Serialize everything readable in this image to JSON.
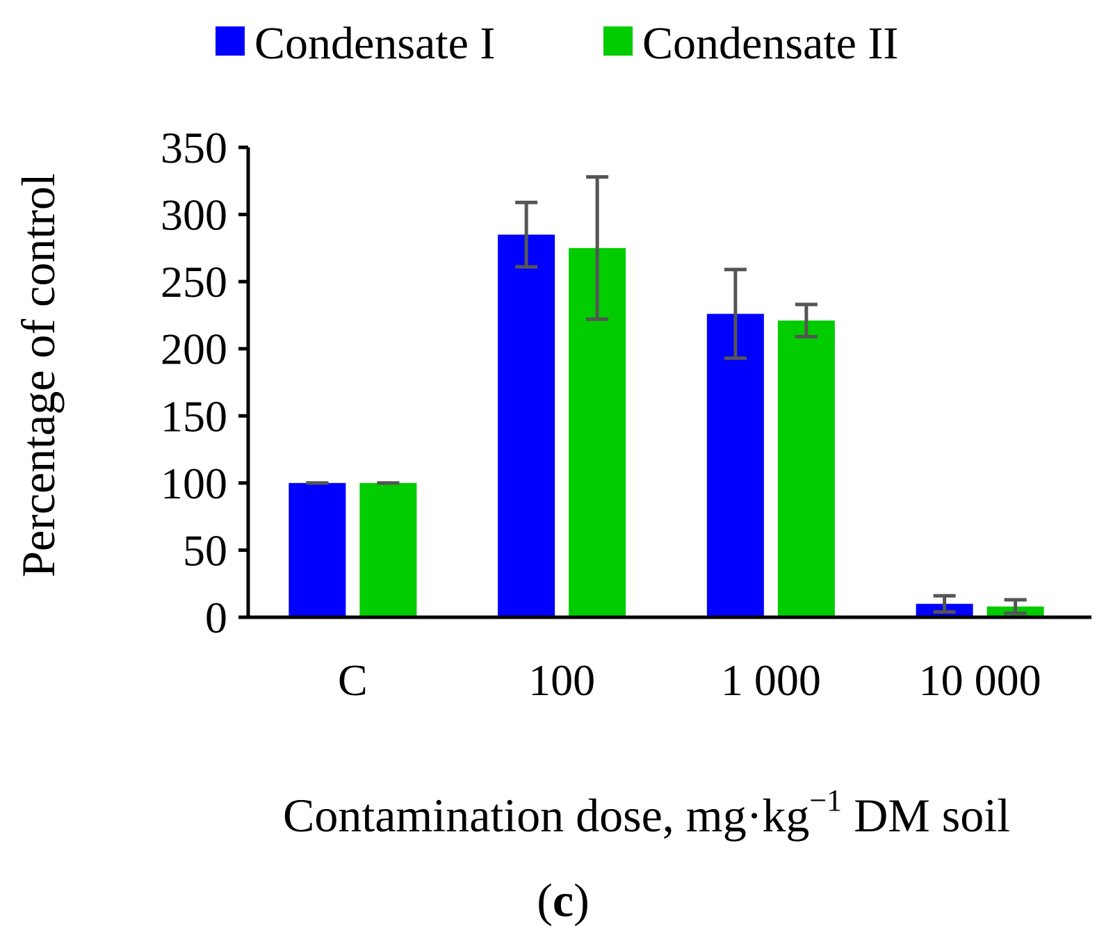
{
  "chart_data": {
    "type": "bar",
    "categories": [
      "C",
      "100",
      "1 000",
      "10 000"
    ],
    "series": [
      {
        "name": "Condensate I",
        "color": "#0000ff",
        "values": [
          100,
          285,
          226,
          10
        ],
        "error": [
          0,
          24,
          33,
          6
        ]
      },
      {
        "name": "Condensate II",
        "color": "#00cc00",
        "values": [
          100,
          275,
          221,
          8
        ],
        "error": [
          0,
          53,
          12,
          5
        ]
      }
    ],
    "ylabel": "Percentage of control",
    "xlabel_main": "Contamination dose, mg·kg",
    "xlabel_sup": "−1",
    "xlabel_tail": " DM soil",
    "ylim": [
      0,
      350
    ],
    "yticks": [
      0,
      50,
      100,
      150,
      200,
      250,
      300,
      350
    ],
    "grid": false,
    "legend_position": "top",
    "panel_label": {
      "open": "(",
      "letter": "c",
      "close": ")"
    },
    "error_bar_color": "#555555"
  }
}
